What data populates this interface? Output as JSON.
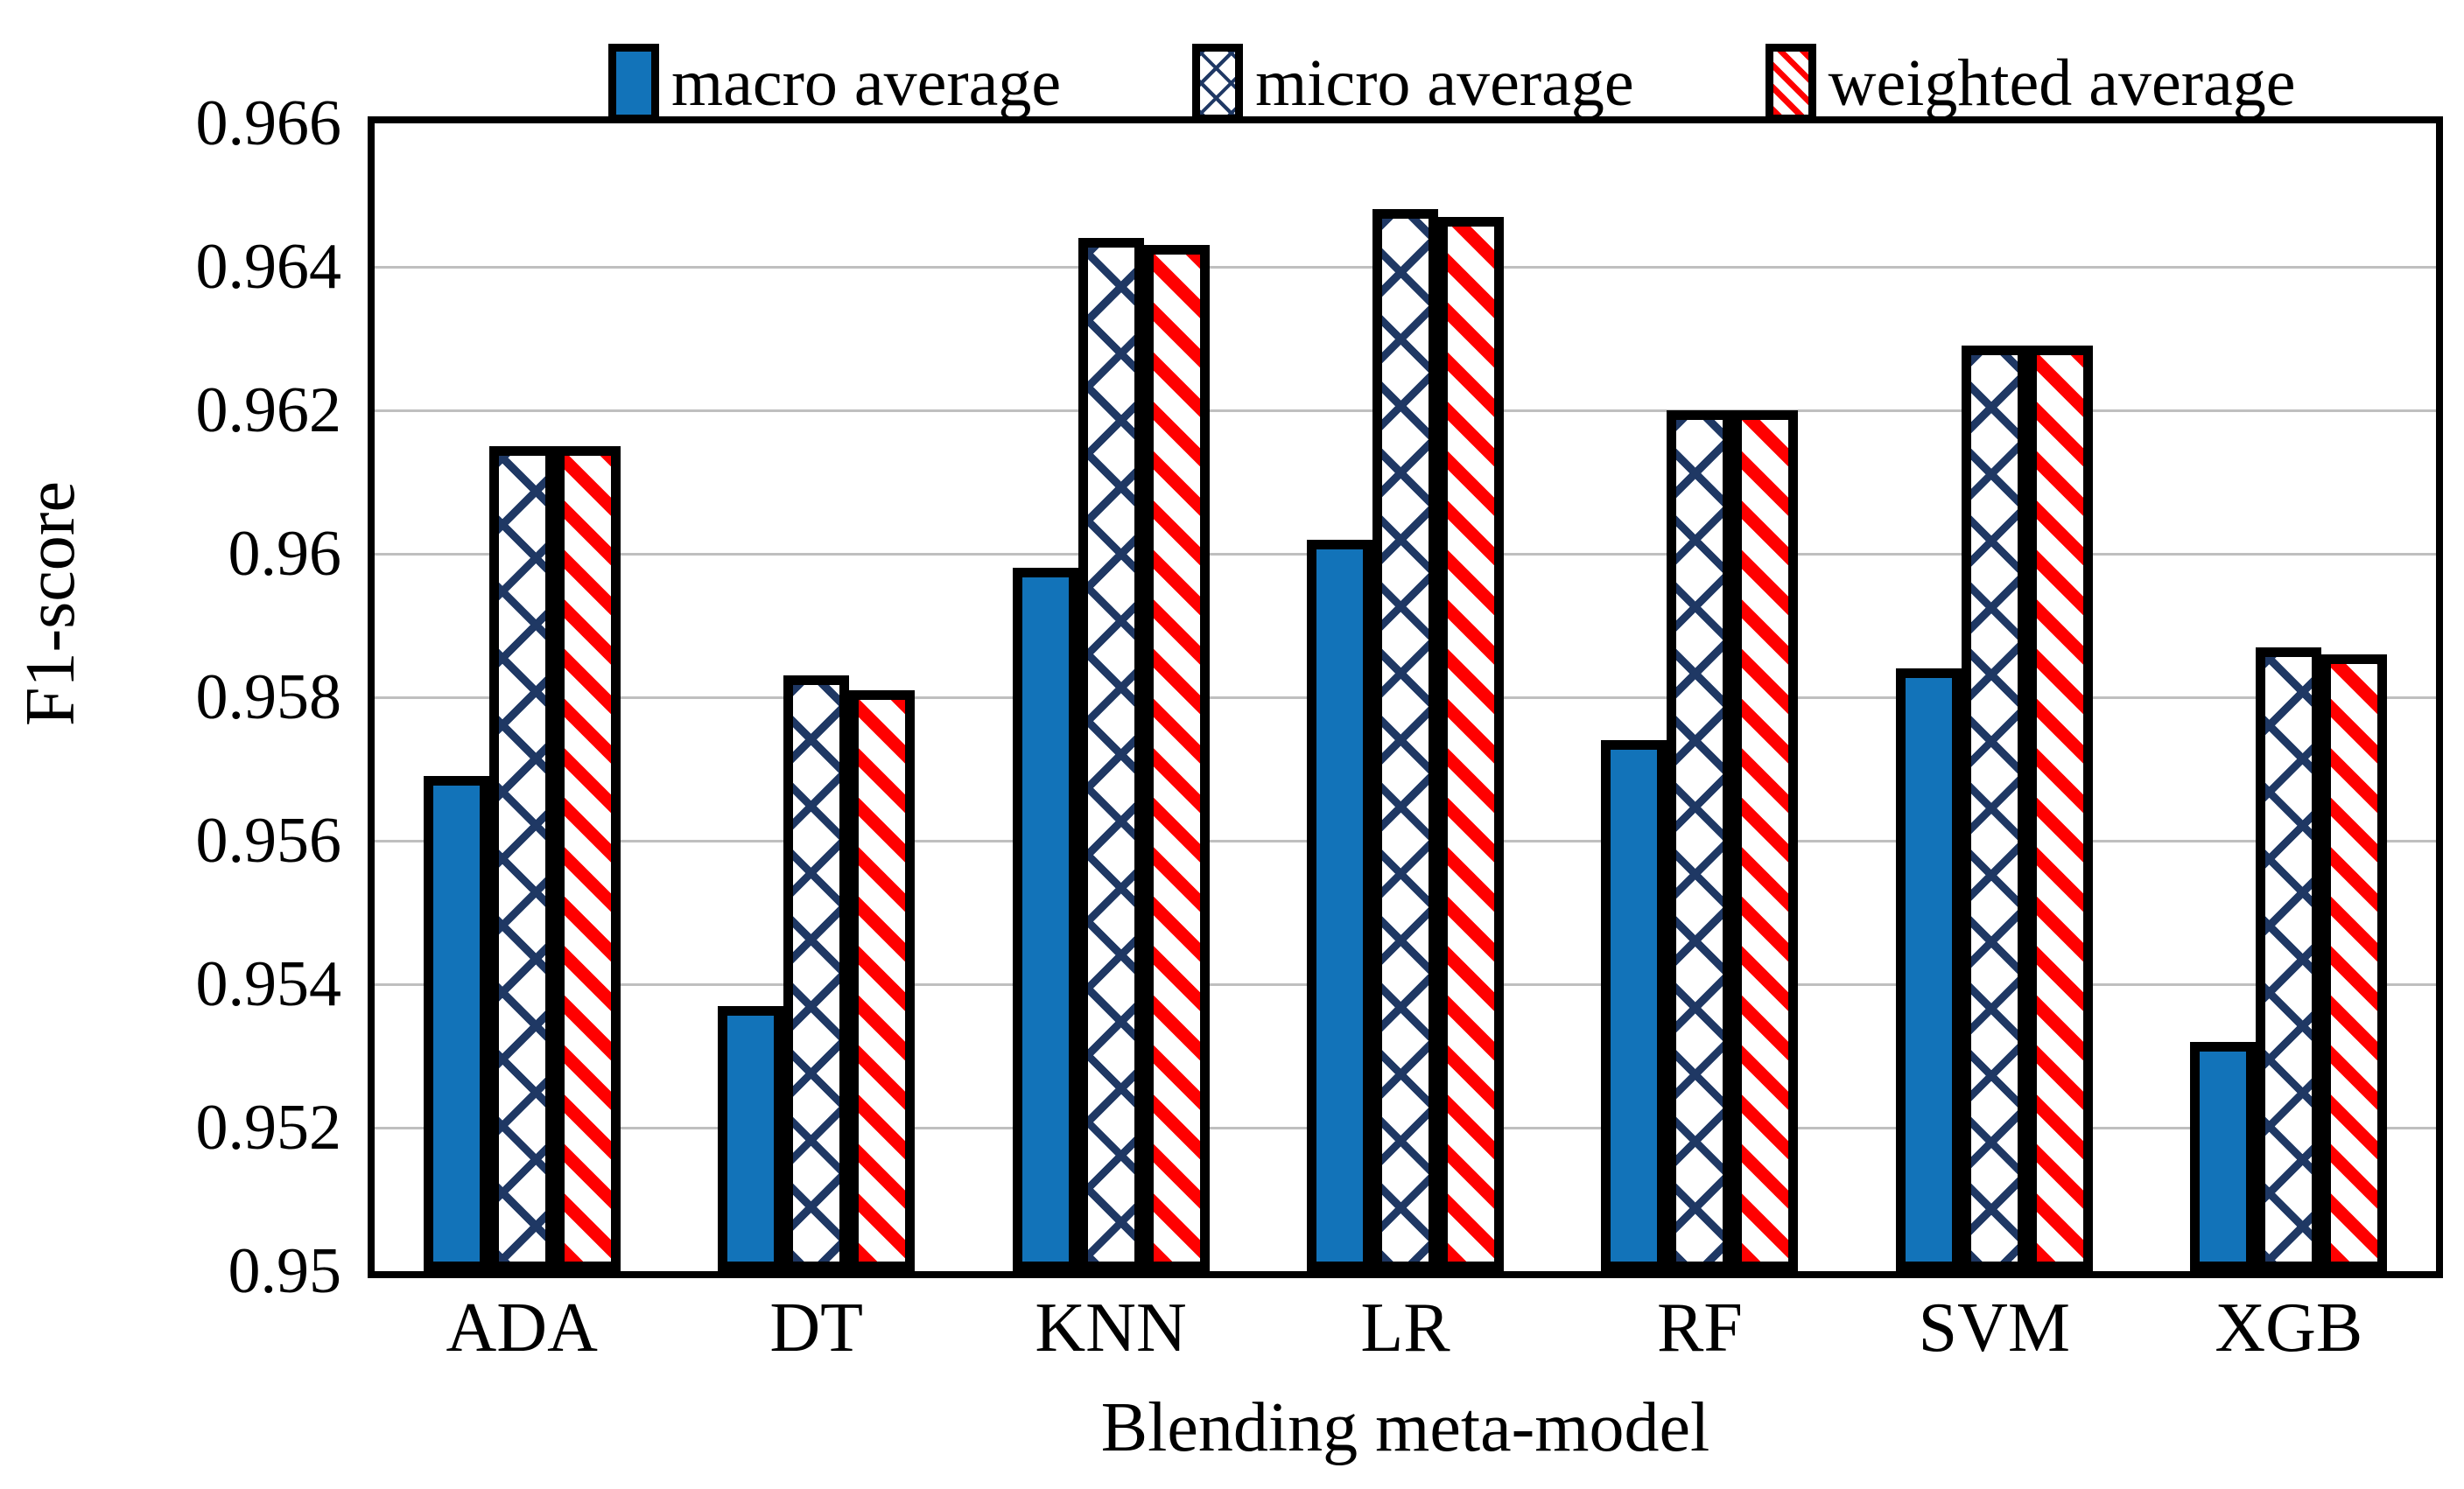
{
  "chart_data": {
    "type": "bar",
    "title": "",
    "categories": [
      "ADA",
      "DT",
      "KNN",
      "LR",
      "RF",
      "SVM",
      "XGB"
    ],
    "series": [
      {
        "name": "macro average",
        "pattern": "solid",
        "color": "#1273B9",
        "values": [
          0.9569,
          0.9537,
          0.9598,
          0.9602,
          0.9574,
          0.9584,
          0.9532
        ]
      },
      {
        "name": "micro average",
        "pattern": "diamond-lattice",
        "color": "#1F3864",
        "values": [
          0.9615,
          0.9583,
          0.9644,
          0.9648,
          0.962,
          0.9629,
          0.9587
        ]
      },
      {
        "name": "weighted average",
        "pattern": "diagonal-stripes",
        "color": "#FF0000",
        "values": [
          0.9615,
          0.9581,
          0.9643,
          0.9647,
          0.962,
          0.9629,
          0.9586
        ]
      }
    ],
    "xlabel": "Blending meta-model",
    "ylabel": "F1-score",
    "ylim": [
      0.95,
      0.966
    ],
    "yticks": [
      0.95,
      0.952,
      0.954,
      0.956,
      0.958,
      0.96,
      0.962,
      0.964,
      0.966
    ],
    "ytick_labels": [
      "0.95",
      "0.952",
      "0.954",
      "0.956",
      "0.958",
      "0.96",
      "0.962",
      "0.964",
      "0.966"
    ],
    "grid": true,
    "legend_position": "top",
    "gridline_color": "#bfbfbf",
    "bar_outline_color": "#000000",
    "pattern_background": "#ffffff"
  }
}
